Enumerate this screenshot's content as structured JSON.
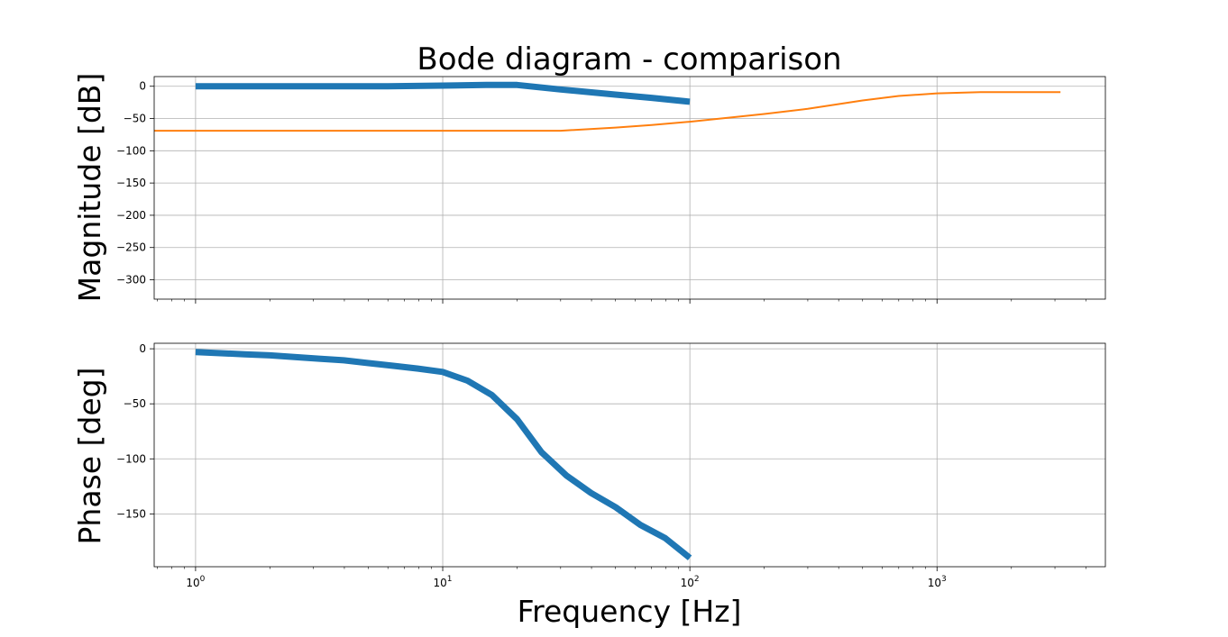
{
  "chart_data": {
    "type": "line",
    "title": "Bode diagram - comparison",
    "xlabel": "Frequency [Hz]",
    "xscale": "log",
    "xlim": [
      0.68,
      4800
    ],
    "xticks": [
      {
        "value": 1,
        "base": "10",
        "exp": "0"
      },
      {
        "value": 10,
        "base": "10",
        "exp": "1"
      },
      {
        "value": 100,
        "base": "10",
        "exp": "2"
      },
      {
        "value": 1000,
        "base": "10",
        "exp": "3"
      }
    ],
    "grid": true,
    "legend": "none",
    "colors": {
      "series1": "#1f77b4",
      "series2": "#ff7f0e"
    },
    "panels": [
      {
        "id": "magnitude",
        "ylabel": "Magnitude [dB]",
        "ylim": [
          -330,
          15
        ],
        "yticks": [
          0,
          -50,
          -100,
          -150,
          -200,
          -250,
          -300
        ],
        "ytick_labels": [
          "0",
          "−50",
          "−100",
          "−150",
          "−200",
          "−250",
          "−300"
        ],
        "series": [
          {
            "x": [
              1,
              2,
              4,
              6,
              10,
              15,
              20,
              30,
              50,
              70,
              100
            ],
            "y": [
              0,
              0,
              0,
              0,
              1,
              2,
              2,
              -5,
              -13,
              -18,
              -24
            ],
            "color": "#1f77b4",
            "width": 7
          },
          {
            "x": [
              0.68,
              1,
              3,
              10,
              20,
              30,
              50,
              70,
              100,
              200,
              300,
              500,
              700,
              1000,
              1500,
              2000,
              3160
            ],
            "y": [
              -69,
              -69,
              -69,
              -69,
              -69,
              -69,
              -64,
              -60,
              -55,
              -43,
              -35,
              -22,
              -15,
              -11,
              -9,
              -9,
              -9
            ],
            "color": "#ff7f0e",
            "width": 2
          }
        ]
      },
      {
        "id": "phase",
        "ylabel": "Phase [deg]",
        "ylim": [
          -198,
          5
        ],
        "yticks": [
          0,
          -50,
          -100,
          -150
        ],
        "ytick_labels": [
          "0",
          "−50",
          "−100",
          "−150"
        ],
        "series": [
          {
            "x": [
              1,
              1.26,
              1.58,
              2,
              2.51,
              3.16,
              3.98,
              5.01,
              6.31,
              7.94,
              10,
              12.6,
              15.8,
              20,
              25.1,
              31.6,
              39.8,
              50.1,
              63.1,
              79.4,
              100
            ],
            "y": [
              -3,
              -4,
              -5,
              -6,
              -7.5,
              -9,
              -10.5,
              -13,
              -15.5,
              -18,
              -21,
              -29,
              -42,
              -64,
              -94,
              -115,
              -131,
              -144,
              -160,
              -172,
              -190
            ],
            "color": "#1f77b4",
            "width": 7
          }
        ]
      }
    ]
  }
}
